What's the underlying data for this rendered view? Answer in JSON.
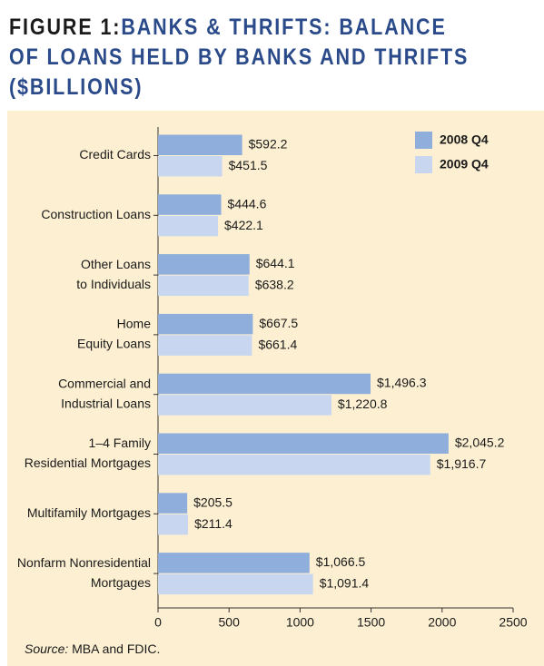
{
  "title": {
    "figure_label": "FIGURE 1:",
    "line1": "BANKS & THRIFTS: BALANCE",
    "line2": "OF LOANS HELD BY BANKS AND THRIFTS",
    "line3": "($BILLIONS)"
  },
  "source": {
    "label": "Source:",
    "text": "MBA and FDIC."
  },
  "colors": {
    "series_2008": "#8faedb",
    "series_2009": "#c8d7ef",
    "panel_bg": "#fdf0d2",
    "title_blue": "#2a4a8a"
  },
  "chart_data": {
    "type": "bar",
    "orientation": "horizontal",
    "categories": [
      [
        "Credit Cards"
      ],
      [
        "Construction Loans"
      ],
      [
        "Other Loans",
        "to Individuals"
      ],
      [
        "Home",
        "Equity Loans"
      ],
      [
        "Commercial and",
        "Industrial Loans"
      ],
      [
        "1–4 Family",
        "Residential Mortgages"
      ],
      [
        "Multifamily Mortgages"
      ],
      [
        "Nonfarm Nonresidential",
        "Mortgages"
      ]
    ],
    "series": [
      {
        "name": "2008 Q4",
        "values": [
          592.2,
          444.6,
          644.1,
          667.5,
          1496.3,
          2045.2,
          205.5,
          1066.5
        ],
        "labels": [
          "$592.2",
          "$444.6",
          "$644.1",
          "$667.5",
          "$1,496.3",
          "$2,045.2",
          "$205.5",
          "$1,066.5"
        ]
      },
      {
        "name": "2009 Q4",
        "values": [
          451.5,
          422.1,
          638.2,
          661.4,
          1220.8,
          1916.7,
          211.4,
          1091.4
        ],
        "labels": [
          "$451.5",
          "$422.1",
          "$638.2",
          "$661.4",
          "$1,220.8",
          "$1,916.7",
          "$211.4",
          "$1,091.4"
        ]
      }
    ],
    "xlim": [
      0,
      2500
    ],
    "xticks": [
      "0",
      "500",
      "1000",
      "1500",
      "2000",
      "2500"
    ],
    "legend": "top-right",
    "grid": false
  }
}
